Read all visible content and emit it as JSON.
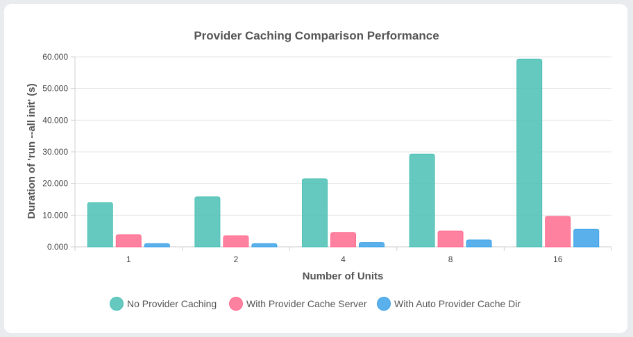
{
  "chart_data": {
    "type": "bar",
    "title": "Provider Caching Comparison Performance",
    "xlabel": "Number of Units",
    "ylabel": "Duration of 'run --all init' (s)",
    "categories": [
      "1",
      "2",
      "4",
      "8",
      "16"
    ],
    "ylim": [
      0,
      60
    ],
    "yticks": [
      0,
      10,
      20,
      30,
      40,
      50,
      60
    ],
    "ytick_labels": [
      "0.000",
      "10.000",
      "20.000",
      "30.000",
      "40.000",
      "50.000",
      "60.000"
    ],
    "grid": true,
    "legend_position": "bottom",
    "series": [
      {
        "name": "No Provider Caching",
        "color": "#4bc0b5",
        "values": [
          14.0,
          15.8,
          21.5,
          29.3,
          59.3
        ]
      },
      {
        "name": "With Provider Cache Server",
        "color": "#ff6b8f",
        "values": [
          3.8,
          3.5,
          4.5,
          5.0,
          9.6
        ]
      },
      {
        "name": "With Auto Provider Cache Dir",
        "color": "#3da2e8",
        "values": [
          1.0,
          1.0,
          1.4,
          2.2,
          5.6
        ]
      }
    ]
  }
}
